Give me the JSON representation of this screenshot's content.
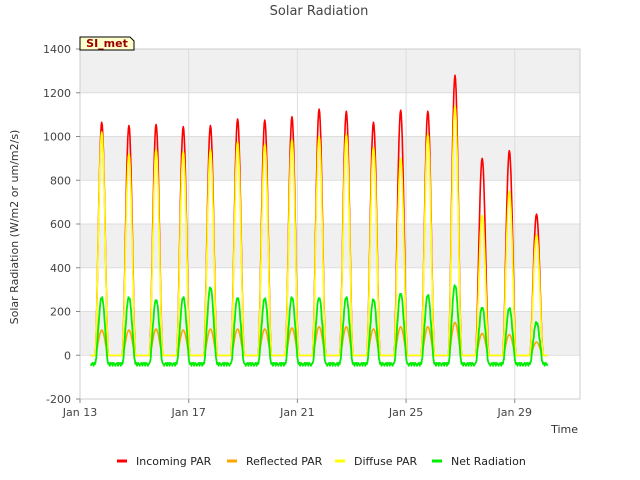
{
  "chart_data": {
    "type": "line",
    "title": "Solar Radiation",
    "xlabel": "Time",
    "ylabel": "Solar Radiation (W/m2 or um/m2/s)",
    "site_label": "SI_met",
    "ylim": [
      -200,
      1400
    ],
    "yticks": [
      -200,
      0,
      200,
      400,
      600,
      800,
      1000,
      1200,
      1400
    ],
    "xlim": [
      0,
      18.4
    ],
    "xticks": [
      {
        "value": 0,
        "label": "Jan 13"
      },
      {
        "value": 4,
        "label": "Jan 17"
      },
      {
        "value": 8,
        "label": "Jan 21"
      },
      {
        "value": 12,
        "label": "Jan 25"
      },
      {
        "value": 16,
        "label": "Jan 29"
      }
    ],
    "x_unit": "days since Jan 13 00:00",
    "grid": true,
    "legend_position": "bottom",
    "day_centers": [
      0.8,
      1.8,
      2.8,
      3.8,
      4.8,
      5.8,
      6.8,
      7.8,
      8.8,
      9.8,
      10.8,
      11.8,
      12.8,
      13.8,
      14.8,
      15.8,
      16.8
    ],
    "series": [
      {
        "name": "Incoming PAR",
        "color": "#ff0000",
        "peaks": [
          1065,
          1050,
          1055,
          1045,
          1050,
          1080,
          1075,
          1090,
          1125,
          1115,
          1065,
          1120,
          1115,
          1280,
          900,
          935,
          645
        ],
        "base": 0
      },
      {
        "name": "Reflected PAR",
        "color": "#ffa500",
        "peaks": [
          115,
          115,
          120,
          115,
          120,
          120,
          120,
          125,
          130,
          130,
          120,
          130,
          130,
          150,
          100,
          95,
          60
        ],
        "base": 0
      },
      {
        "name": "Diffuse PAR",
        "color": "#ffff00",
        "peaks": [
          1020,
          920,
          940,
          930,
          940,
          975,
          965,
          985,
          1000,
          1010,
          950,
          900,
          1010,
          1140,
          640,
          750,
          550
        ],
        "base": 0
      },
      {
        "name": "Net Radiation",
        "color": "#00ee00",
        "peaks": [
          265,
          265,
          255,
          265,
          310,
          265,
          260,
          265,
          265,
          265,
          255,
          285,
          275,
          320,
          220,
          215,
          150
        ],
        "base": -40
      }
    ]
  }
}
